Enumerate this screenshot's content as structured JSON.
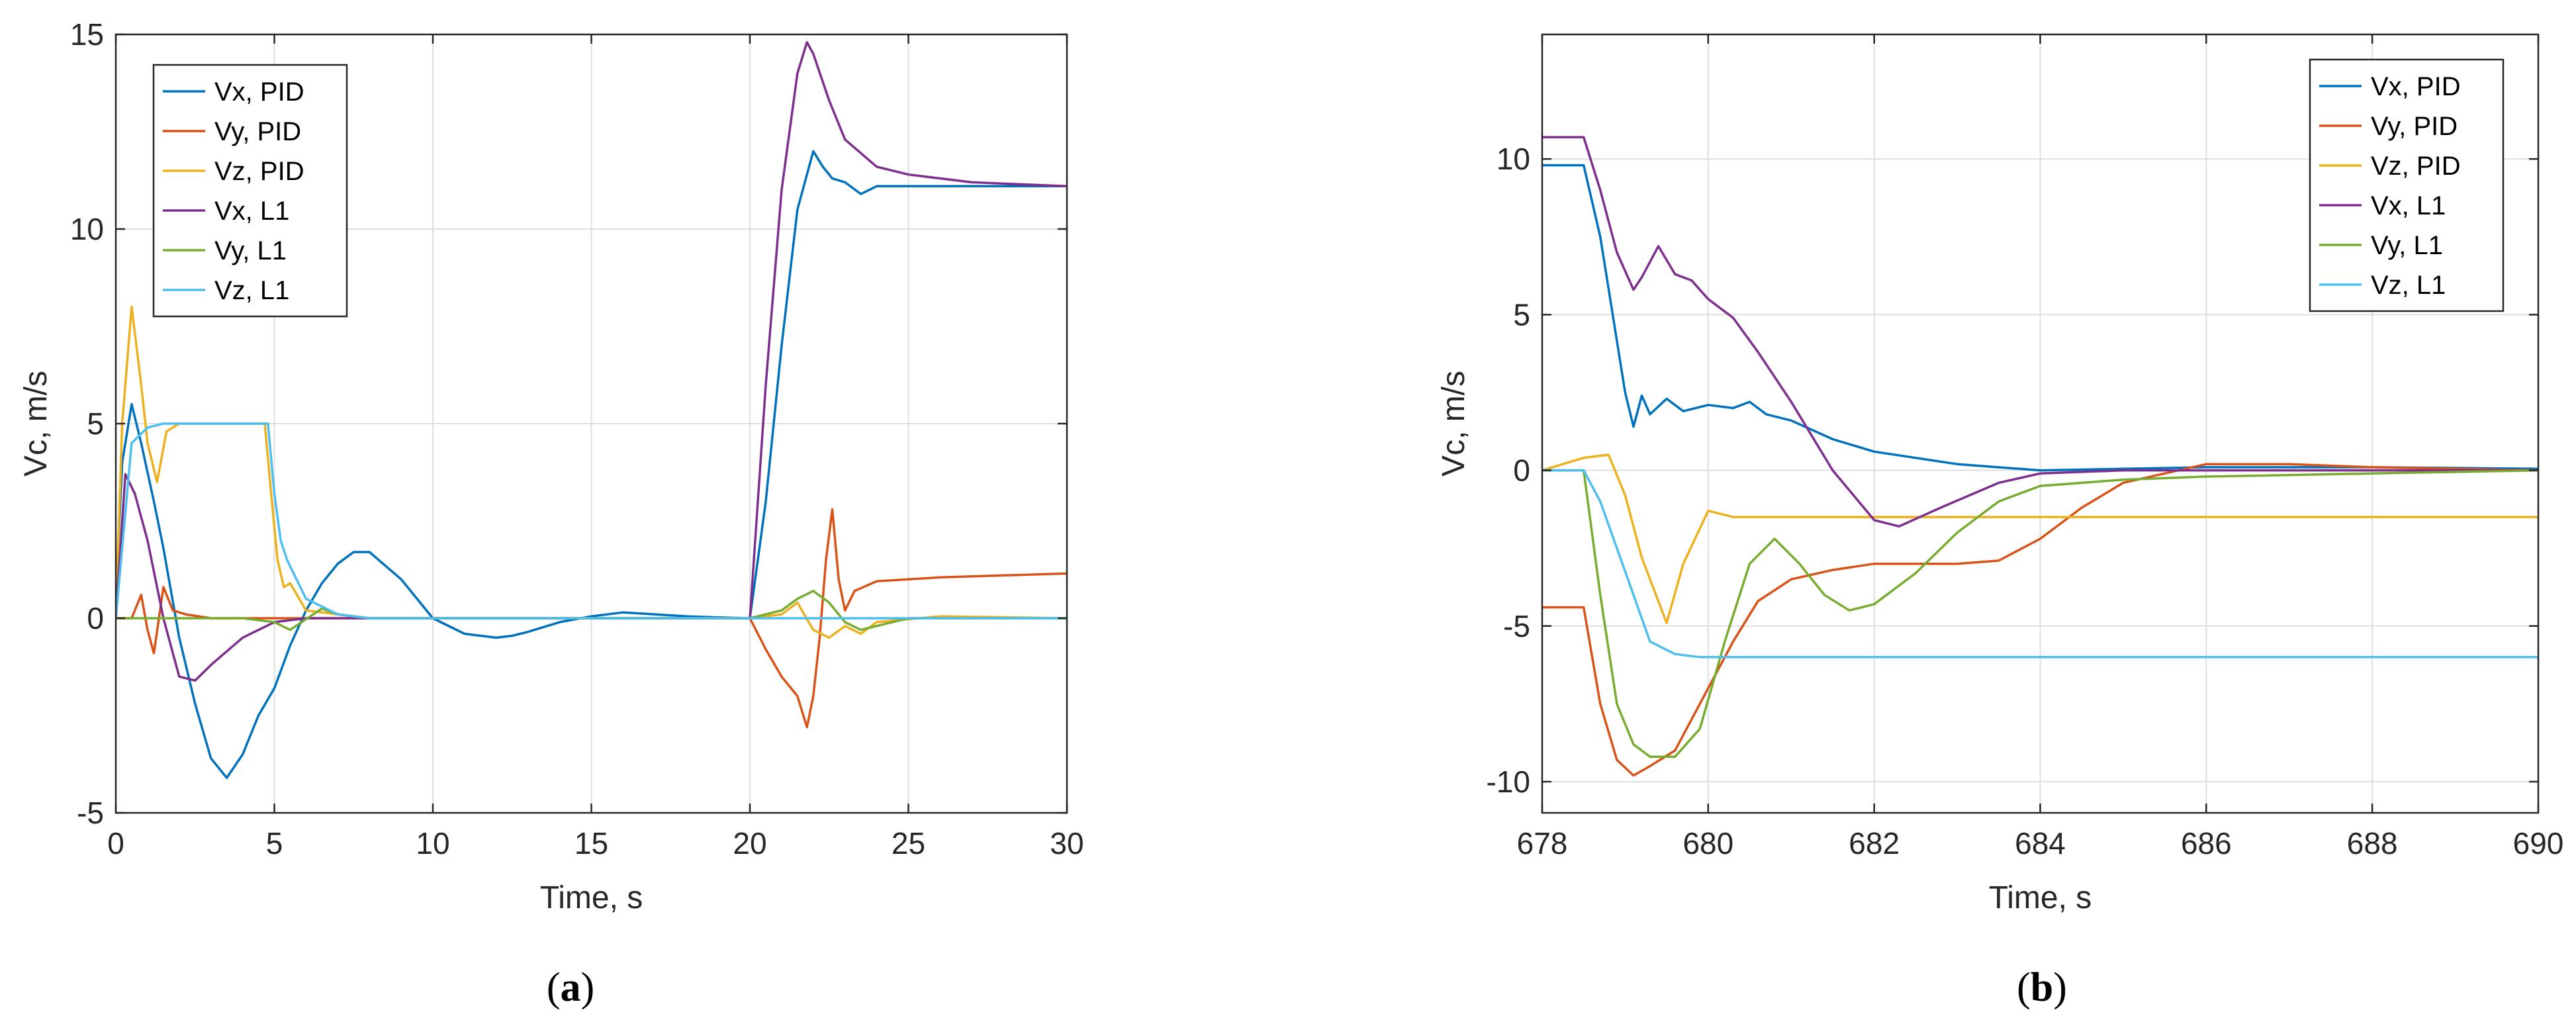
{
  "figure": {
    "panels": [
      {
        "label_open": "(",
        "label_letter": "a",
        "label_close": ")"
      },
      {
        "label_open": "(",
        "label_letter": "b",
        "label_close": ")"
      }
    ]
  },
  "chart_data": [
    {
      "type": "line",
      "panel": "a",
      "xlabel": "Time, s",
      "ylabel": "Vc, m/s",
      "xlim": [
        0,
        30
      ],
      "ylim": [
        -5,
        15
      ],
      "xticks": [
        0,
        5,
        10,
        15,
        20,
        25,
        30
      ],
      "yticks": [
        -5,
        0,
        5,
        10,
        15
      ],
      "grid": true,
      "legend_position": "top-left",
      "series": [
        {
          "name": "Vx, PID",
          "color": "#0072BD",
          "x": [
            0,
            0.2,
            0.5,
            0.8,
            1.2,
            1.5,
            2,
            2.5,
            3,
            3.5,
            4,
            4.5,
            5,
            5.5,
            6,
            6.5,
            7,
            7.5,
            8,
            9,
            10,
            11,
            12,
            12.5,
            13,
            14,
            15,
            16,
            17,
            18,
            19,
            20,
            20.5,
            21,
            21.5,
            22,
            22.3,
            22.6,
            23,
            23.5,
            24,
            25,
            27,
            30
          ],
          "y": [
            0.5,
            4,
            5.5,
            4.5,
            3,
            1.8,
            -0.5,
            -2.2,
            -3.6,
            -4.1,
            -3.5,
            -2.5,
            -1.8,
            -0.7,
            0.2,
            0.9,
            1.4,
            1.7,
            1.7,
            1.0,
            0,
            -0.4,
            -0.5,
            -0.45,
            -0.35,
            -0.1,
            0.05,
            0.15,
            0.1,
            0.05,
            0.02,
            0,
            3,
            7,
            10.5,
            12.0,
            11.6,
            11.3,
            11.2,
            10.9,
            11.1,
            11.1,
            11.1,
            11.1
          ]
        },
        {
          "name": "Vy, PID",
          "color": "#D95319",
          "x": [
            0,
            0.5,
            0.8,
            1.0,
            1.2,
            1.5,
            1.8,
            2.2,
            3,
            5,
            10,
            15,
            20,
            20.5,
            21,
            21.5,
            21.8,
            22.0,
            22.2,
            22.4,
            22.6,
            22.8,
            23.0,
            23.3,
            24,
            26,
            28,
            30
          ],
          "y": [
            0,
            0,
            0.6,
            -0.3,
            -0.9,
            0.8,
            0.2,
            0.1,
            0,
            0,
            0,
            0,
            0,
            -0.8,
            -1.5,
            -2.0,
            -2.8,
            -2.0,
            -0.5,
            1.5,
            2.8,
            1.0,
            0.2,
            0.7,
            0.95,
            1.05,
            1.1,
            1.15
          ]
        },
        {
          "name": "Vz, PID",
          "color": "#EDB120",
          "x": [
            0,
            0.2,
            0.5,
            0.8,
            1.0,
            1.3,
            1.6,
            2.0,
            2.5,
            3,
            4,
            4.7,
            4.9,
            5.1,
            5.3,
            5.5,
            6,
            8,
            10,
            15,
            20,
            21,
            21.5,
            22,
            22.5,
            23,
            23.5,
            24,
            26,
            30
          ],
          "y": [
            0,
            5,
            8.0,
            6.0,
            4.5,
            3.5,
            4.8,
            5.0,
            5.0,
            5.0,
            5.0,
            5.0,
            3.2,
            1.5,
            0.8,
            0.9,
            0.2,
            0,
            0,
            0,
            0,
            0.1,
            0.4,
            -0.3,
            -0.5,
            -0.2,
            -0.4,
            -0.1,
            0.05,
            0
          ]
        },
        {
          "name": "Vx, L1",
          "color": "#7E2F8E",
          "x": [
            0,
            0.3,
            0.6,
            1.0,
            1.5,
            2,
            2.5,
            3,
            4,
            5,
            6,
            7,
            8,
            10,
            15,
            20,
            20.5,
            21,
            21.5,
            21.8,
            22,
            22.5,
            23,
            24,
            25,
            27,
            30
          ],
          "y": [
            0,
            3.7,
            3.2,
            2.0,
            0,
            -1.5,
            -1.6,
            -1.2,
            -0.5,
            -0.1,
            0,
            0,
            0,
            0,
            0,
            0,
            6,
            11,
            14,
            14.8,
            14.5,
            13.3,
            12.3,
            11.6,
            11.4,
            11.2,
            11.1
          ]
        },
        {
          "name": "Vy, L1",
          "color": "#77AC30",
          "x": [
            0,
            2,
            4,
            5,
            5.5,
            6.5,
            7,
            8,
            10,
            15,
            20,
            20.5,
            21,
            21.5,
            22,
            22.5,
            23,
            23.5,
            25,
            30
          ],
          "y": [
            0,
            0,
            0,
            -0.1,
            -0.3,
            0.25,
            0.1,
            0,
            0,
            0,
            0,
            0.1,
            0.2,
            0.5,
            0.7,
            0.4,
            -0.1,
            -0.3,
            0,
            0
          ]
        },
        {
          "name": "Vz, L1",
          "color": "#4DBEEE",
          "x": [
            0,
            0.5,
            1.0,
            1.5,
            2,
            3,
            4,
            4.8,
            5.0,
            5.2,
            5.4,
            5.7,
            6,
            7,
            8,
            10,
            20,
            30
          ],
          "y": [
            0,
            4.5,
            4.9,
            5.0,
            5.0,
            5.0,
            5.0,
            5.0,
            3.2,
            2.0,
            1.5,
            1.0,
            0.5,
            0.1,
            0,
            0,
            0,
            0
          ]
        }
      ]
    },
    {
      "type": "line",
      "panel": "b",
      "xlabel": "Time, s",
      "ylabel": "Vc, m/s",
      "xlim": [
        678,
        690
      ],
      "ylim": [
        -11,
        14
      ],
      "xticks": [
        678,
        680,
        682,
        684,
        686,
        688,
        690
      ],
      "yticks": [
        -10,
        -5,
        0,
        5,
        10
      ],
      "grid": true,
      "legend_position": "top-right",
      "series": [
        {
          "name": "Vx, PID",
          "color": "#0072BD",
          "x": [
            678,
            678.5,
            678.7,
            678.85,
            679.0,
            679.1,
            679.2,
            679.3,
            679.5,
            679.7,
            680,
            680.3,
            680.5,
            680.7,
            681,
            681.5,
            682,
            683,
            684,
            686,
            688,
            690
          ],
          "y": [
            9.8,
            9.8,
            7.5,
            5.0,
            2.5,
            1.4,
            2.4,
            1.8,
            2.3,
            1.9,
            2.1,
            2.0,
            2.2,
            1.8,
            1.6,
            1.0,
            0.6,
            0.2,
            0,
            0.1,
            0.1,
            0.05
          ]
        },
        {
          "name": "Vy, PID",
          "color": "#D95319",
          "x": [
            678,
            678.5,
            678.7,
            678.9,
            679.1,
            679.3,
            679.6,
            680,
            680.3,
            680.6,
            681,
            681.5,
            682,
            683,
            683.5,
            684,
            684.5,
            685,
            686,
            687,
            688,
            690
          ],
          "y": [
            -4.4,
            -4.4,
            -7.5,
            -9.3,
            -9.8,
            -9.5,
            -9.0,
            -7.0,
            -5.5,
            -4.2,
            -3.5,
            -3.2,
            -3.0,
            -3.0,
            -2.9,
            -2.2,
            -1.2,
            -0.4,
            0.2,
            0.2,
            0.1,
            0.0
          ]
        },
        {
          "name": "Vz, PID",
          "color": "#EDB120",
          "x": [
            678,
            678.5,
            678.8,
            679.0,
            679.2,
            679.5,
            679.7,
            680.0,
            680.3,
            681,
            682,
            684,
            686,
            690
          ],
          "y": [
            0,
            0.4,
            0.5,
            -0.8,
            -2.8,
            -4.9,
            -3.0,
            -1.3,
            -1.5,
            -1.5,
            -1.5,
            -1.5,
            -1.5,
            -1.5
          ]
        },
        {
          "name": "Vx, L1",
          "color": "#7E2F8E",
          "x": [
            678,
            678.5,
            678.7,
            678.9,
            679.1,
            679.2,
            679.4,
            679.6,
            679.8,
            680,
            680.3,
            680.6,
            681,
            681.5,
            682,
            682.3,
            682.8,
            683.5,
            684,
            685,
            686,
            688,
            690
          ],
          "y": [
            10.7,
            10.7,
            9.0,
            7.0,
            5.8,
            6.2,
            7.2,
            6.3,
            6.1,
            5.5,
            4.9,
            3.8,
            2.2,
            0,
            -1.6,
            -1.8,
            -1.2,
            -0.4,
            -0.1,
            0,
            0,
            0,
            0
          ]
        },
        {
          "name": "Vy, L1",
          "color": "#77AC30",
          "x": [
            678,
            678.5,
            678.7,
            678.9,
            679.1,
            679.3,
            679.6,
            679.9,
            680.2,
            680.5,
            680.8,
            681.1,
            681.4,
            681.7,
            682.0,
            682.5,
            683,
            683.5,
            684,
            685,
            686,
            688,
            690
          ],
          "y": [
            0,
            0,
            -4.0,
            -7.5,
            -8.8,
            -9.2,
            -9.2,
            -8.3,
            -5.5,
            -3.0,
            -2.2,
            -3.0,
            -4.0,
            -4.5,
            -4.3,
            -3.3,
            -2.0,
            -1.0,
            -0.5,
            -0.3,
            -0.2,
            -0.1,
            0
          ]
        },
        {
          "name": "Vz, L1",
          "color": "#4DBEEE",
          "x": [
            678,
            678.5,
            678.7,
            678.9,
            679.1,
            679.3,
            679.6,
            679.9,
            680.2,
            681,
            684,
            690
          ],
          "y": [
            0,
            0,
            -1.0,
            -2.5,
            -4.0,
            -5.5,
            -5.9,
            -6.0,
            -6.0,
            -6.0,
            -6.0,
            -6.0
          ]
        }
      ]
    }
  ]
}
